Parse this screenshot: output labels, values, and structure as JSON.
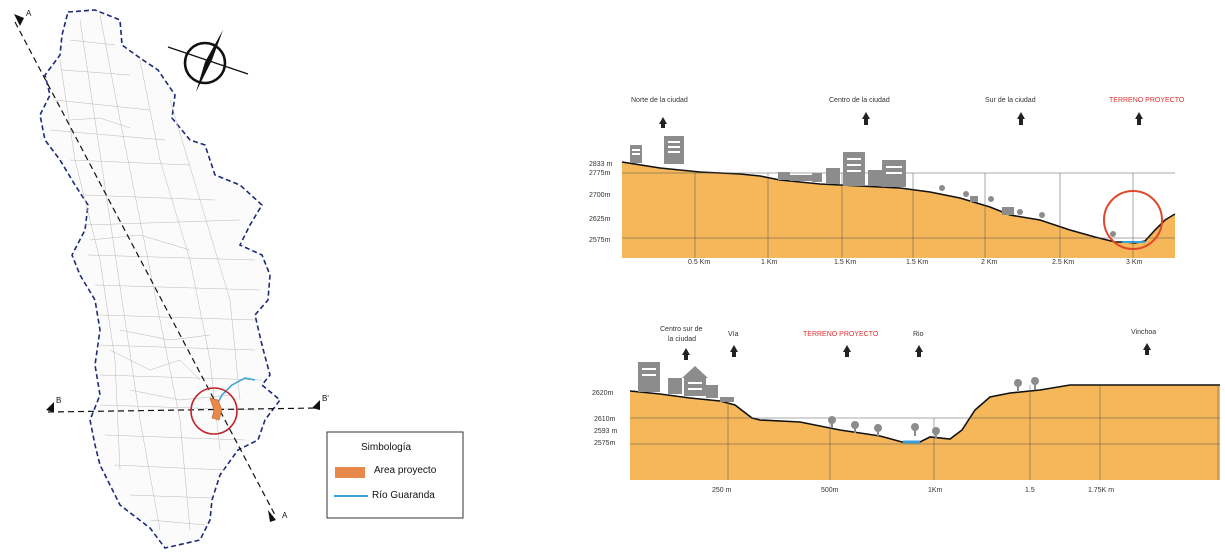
{
  "map": {
    "section_markers": {
      "a_top": "A",
      "a_bottom": "A",
      "b_left": "B",
      "b_right": "B'"
    },
    "legend": {
      "title": "Simbología",
      "items": [
        {
          "label": "Area proyecto",
          "color": "#e8894a",
          "type": "swatch"
        },
        {
          "label": "Río Guaranda",
          "color": "#3aa0d8",
          "type": "line"
        }
      ]
    },
    "colors": {
      "boundary": "#1e2a78",
      "highlight": "#c0272d",
      "streets": "#b0b0b0"
    }
  },
  "profile_top": {
    "landmarks": [
      {
        "label": "Norte de la ciudad",
        "highlight": false
      },
      {
        "label": "Centro de la ciudad",
        "highlight": false
      },
      {
        "label": "Sur de la ciudad",
        "highlight": false
      },
      {
        "label": "TERRENO PROYECTO",
        "highlight": true
      }
    ],
    "elevations": [
      "2833 m",
      "2775m",
      "2700m",
      "2625m",
      "2575m"
    ],
    "distances": [
      "0.5 Km",
      "1 Km",
      "1.5 Km",
      "1.5 Km",
      "2 Km",
      "2.5 Km",
      "3 Km"
    ]
  },
  "profile_bottom": {
    "landmarks": [
      {
        "label": "Centro sur de",
        "label2": "la ciudad",
        "highlight": false
      },
      {
        "label": "Vía",
        "highlight": false
      },
      {
        "label": "TERRENO PROYECTO",
        "highlight": true
      },
      {
        "label": "Rio",
        "highlight": false
      },
      {
        "label": "Vinchoa",
        "highlight": false
      }
    ],
    "elevations": [
      "2620m",
      "2610m",
      "2593 m",
      "2575m"
    ],
    "distances": [
      "250 m",
      "500m",
      "1Km",
      "1.5",
      "1.75K m"
    ]
  },
  "colors": {
    "terrain": "#f5b75a",
    "river": "#3aa0d8",
    "highlight_text": "#e03030",
    "building": "#8c8c8c"
  }
}
